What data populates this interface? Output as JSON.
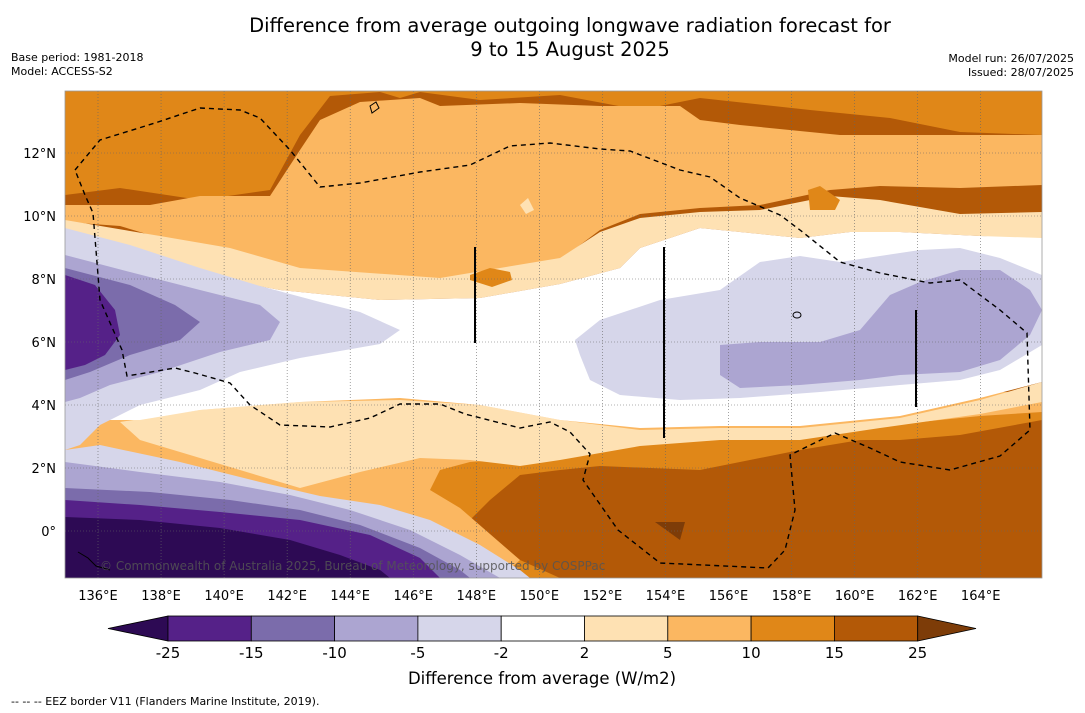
{
  "title": {
    "line1": "Difference from average outgoing longwave radiation forecast for",
    "line2": "9 to 15 August 2025"
  },
  "meta_left": {
    "base_period": "Base period: 1981-2018",
    "model": "Model: ACCESS-S2"
  },
  "meta_right": {
    "model_run": "Model run: 26/07/2025",
    "issued": "Issued: 28/07/2025"
  },
  "map": {
    "x_ticks": [
      "136°E",
      "138°E",
      "140°E",
      "142°E",
      "144°E",
      "146°E",
      "148°E",
      "150°E",
      "152°E",
      "154°E",
      "156°E",
      "158°E",
      "160°E",
      "162°E",
      "164°E"
    ],
    "y_ticks": [
      "12°N",
      "10°N",
      "8°N",
      "6°N",
      "4°N",
      "2°N",
      "0°"
    ],
    "credit": "© Commonwealth of Australia 2025, Bureau of Meteorology, supported by COSPPac"
  },
  "colorbar": {
    "labels": [
      "-25",
      "-15",
      "-10",
      "-5",
      "-2",
      "2",
      "5",
      "10",
      "15",
      "25"
    ],
    "colors": [
      "#2d0a54",
      "#552188",
      "#7b6cab",
      "#aca5d1",
      "#d6d6ea",
      "#ffffff",
      "#fee1b3",
      "#fbb761",
      "#e08718",
      "#b35907",
      "#7d3c08"
    ],
    "title": "Difference from average (W/m2)"
  },
  "footnote": "--  --  -- EEZ border V11 (Flanders Marine Institute, 2019)."
}
